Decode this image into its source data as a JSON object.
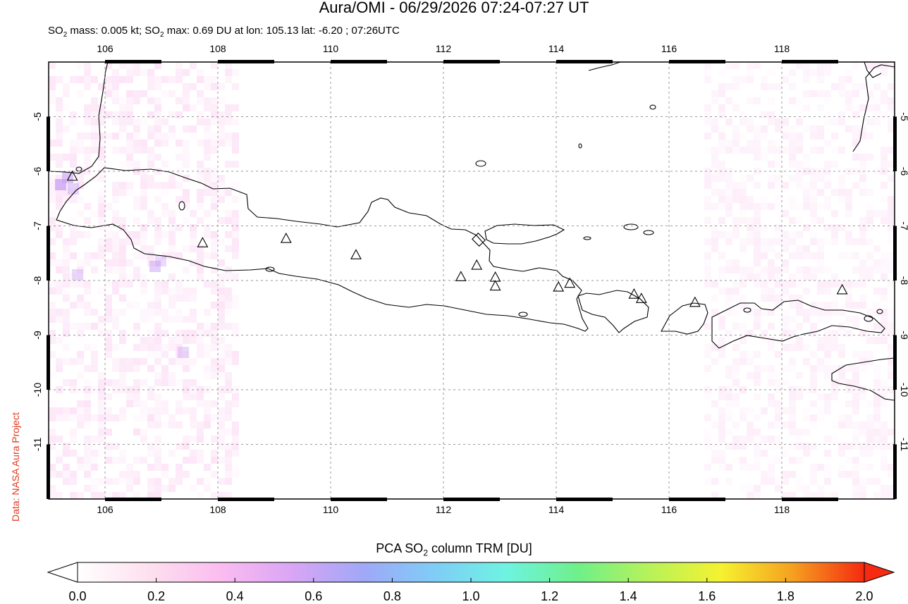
{
  "title": "Aura/OMI - 06/29/2026 07:24-07:27 UT",
  "subtitle": {
    "prefix": "SO",
    "sub": "2",
    "mid1": " mass: 0.005 kt; SO",
    "mid2": " max: 0.69 DU at lon: 105.13 lat: -6.20 ; 07:26UTC"
  },
  "credit": "Data: NASA Aura Project",
  "map": {
    "lon_range": [
      105,
      120
    ],
    "lat_range": [
      -12,
      -4
    ],
    "x_ticks": [
      "106",
      "108",
      "110",
      "112",
      "114",
      "116",
      "118"
    ],
    "x_tick_values": [
      106,
      108,
      110,
      112,
      114,
      116,
      118
    ],
    "y_ticks": [
      "-5",
      "-6",
      "-7",
      "-8",
      "-9",
      "-10",
      "-11"
    ],
    "y_tick_values": [
      -5,
      -6,
      -7,
      -8,
      -9,
      -10,
      -11
    ],
    "volcanoes": [
      {
        "lon": 105.42,
        "lat": -6.1
      },
      {
        "lon": 107.73,
        "lat": -7.32
      },
      {
        "lon": 109.21,
        "lat": -7.24
      },
      {
        "lon": 110.45,
        "lat": -7.54
      },
      {
        "lon": 112.31,
        "lat": -7.94
      },
      {
        "lon": 112.59,
        "lat": -7.73
      },
      {
        "lon": 112.92,
        "lat": -7.95
      },
      {
        "lon": 112.92,
        "lat": -8.11
      },
      {
        "lon": 114.04,
        "lat": -8.13
      },
      {
        "lon": 114.24,
        "lat": -8.06
      },
      {
        "lon": 115.38,
        "lat": -8.26
      },
      {
        "lon": 115.51,
        "lat": -8.34
      },
      {
        "lon": 116.46,
        "lat": -8.41
      },
      {
        "lon": 119.07,
        "lat": -8.18
      }
    ]
  },
  "colorbar": {
    "title_prefix": "PCA SO",
    "title_sub": "2",
    "title_suffix": " column TRM [DU]",
    "labels": [
      "0.0",
      "0.2",
      "0.4",
      "0.6",
      "0.8",
      "1.0",
      "1.2",
      "1.4",
      "1.6",
      "1.8",
      "2.0"
    ],
    "colors": [
      "#ffffff",
      "#fde0ee",
      "#fbbcf0",
      "#d9a5f5",
      "#9fa8f7",
      "#7fcdf7",
      "#6ef3e2",
      "#6ff08a",
      "#b7f25a",
      "#f5f230",
      "#f5a020",
      "#f52a10"
    ]
  }
}
